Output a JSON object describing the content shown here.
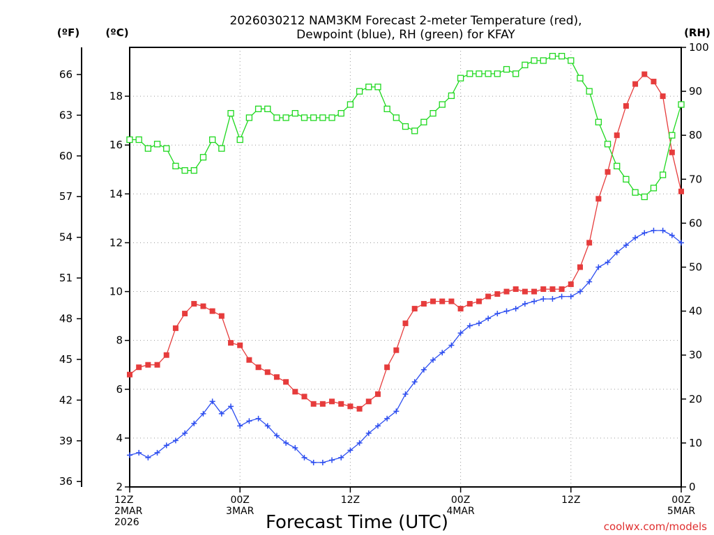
{
  "chart_data": {
    "type": "line",
    "title_line1": "2026030212 NAM3KM Forecast 2-meter Temperature (red),",
    "title_line2": "Dewpoint (blue), RH (green) for KFAY",
    "xlabel": "Forecast Time (UTC)",
    "credit": "coolwx.com/models",
    "units": {
      "fahrenheit": "(ºF)",
      "celsius": "(ºC)",
      "rh": "(RH)"
    },
    "celsius_axis": {
      "min": 2,
      "max": 20,
      "ticks": [
        "2",
        "4",
        "6",
        "8",
        "10",
        "12",
        "14",
        "16",
        "18"
      ]
    },
    "fahrenheit_ticks": [
      36,
      39,
      42,
      45,
      48,
      51,
      54,
      57,
      60,
      63,
      66
    ],
    "rh_axis": {
      "min": 0,
      "max": 100,
      "ticks": [
        "0",
        "10",
        "20",
        "30",
        "40",
        "50",
        "60",
        "70",
        "80",
        "90",
        "100"
      ]
    },
    "x_axis": {
      "start_hour": 0,
      "end_hour": 60,
      "step_hours": 1
    },
    "x_ticks": [
      {
        "hour": 0,
        "lines": [
          "12Z",
          "2MAR",
          "2026"
        ]
      },
      {
        "hour": 12,
        "lines": [
          "00Z",
          "3MAR"
        ]
      },
      {
        "hour": 24,
        "lines": [
          "12Z"
        ]
      },
      {
        "hour": 36,
        "lines": [
          "00Z",
          "4MAR"
        ]
      },
      {
        "hour": 48,
        "lines": [
          "12Z"
        ]
      },
      {
        "hour": 60,
        "lines": [
          "00Z",
          "5MAR"
        ]
      }
    ],
    "colors": {
      "temperature": "#e63c3c",
      "dewpoint": "#2d4ef0",
      "rh": "#1ed81e",
      "credit": "#e03030"
    },
    "series": [
      {
        "name": "Temperature (°C)",
        "axis": "celsius",
        "marker": "filled-square",
        "values": [
          6.6,
          6.9,
          7.0,
          7.0,
          7.4,
          8.5,
          9.1,
          9.5,
          9.4,
          9.2,
          9.0,
          7.9,
          7.8,
          7.2,
          6.9,
          6.7,
          6.5,
          6.3,
          5.9,
          5.7,
          5.4,
          5.4,
          5.5,
          5.4,
          5.3,
          5.2,
          5.5,
          5.8,
          6.9,
          7.6,
          8.7,
          9.3,
          9.5,
          9.6,
          9.6,
          9.6,
          9.3,
          9.5,
          9.6,
          9.8,
          9.9,
          10.0,
          10.1,
          10.0,
          10.0,
          10.1,
          10.1,
          10.1,
          10.3,
          11.0,
          12.0,
          13.8,
          14.9,
          16.4,
          17.6,
          18.5,
          18.9,
          18.6,
          18.0,
          15.7,
          14.1
        ]
      },
      {
        "name": "Dewpoint (°C)",
        "axis": "celsius",
        "marker": "plus",
        "values": [
          3.3,
          3.4,
          3.2,
          3.4,
          3.7,
          3.9,
          4.2,
          4.6,
          5.0,
          5.5,
          5.0,
          5.3,
          4.5,
          4.7,
          4.8,
          4.5,
          4.1,
          3.8,
          3.6,
          3.2,
          3.0,
          3.0,
          3.1,
          3.2,
          3.5,
          3.8,
          4.2,
          4.5,
          4.8,
          5.1,
          5.8,
          6.3,
          6.8,
          7.2,
          7.5,
          7.8,
          8.3,
          8.6,
          8.7,
          8.9,
          9.1,
          9.2,
          9.3,
          9.5,
          9.6,
          9.7,
          9.7,
          9.8,
          9.8,
          10.0,
          10.4,
          11.0,
          11.2,
          11.6,
          11.9,
          12.2,
          12.4,
          12.5,
          12.5,
          12.3,
          12.0
        ]
      },
      {
        "name": "RH (%)",
        "axis": "rh",
        "marker": "open-square",
        "values": [
          79,
          79,
          77,
          78,
          77,
          73,
          72,
          72,
          75,
          79,
          77,
          85,
          79,
          84,
          86,
          86,
          84,
          84,
          85,
          84,
          84,
          84,
          84,
          85,
          87,
          90,
          91,
          91,
          86,
          84,
          82,
          81,
          83,
          85,
          87,
          89,
          93,
          94,
          94,
          94,
          94,
          95,
          94,
          96,
          97,
          97,
          98,
          98,
          97,
          93,
          90,
          83,
          78,
          73,
          70,
          67,
          66,
          68,
          71,
          80,
          87
        ]
      }
    ]
  }
}
